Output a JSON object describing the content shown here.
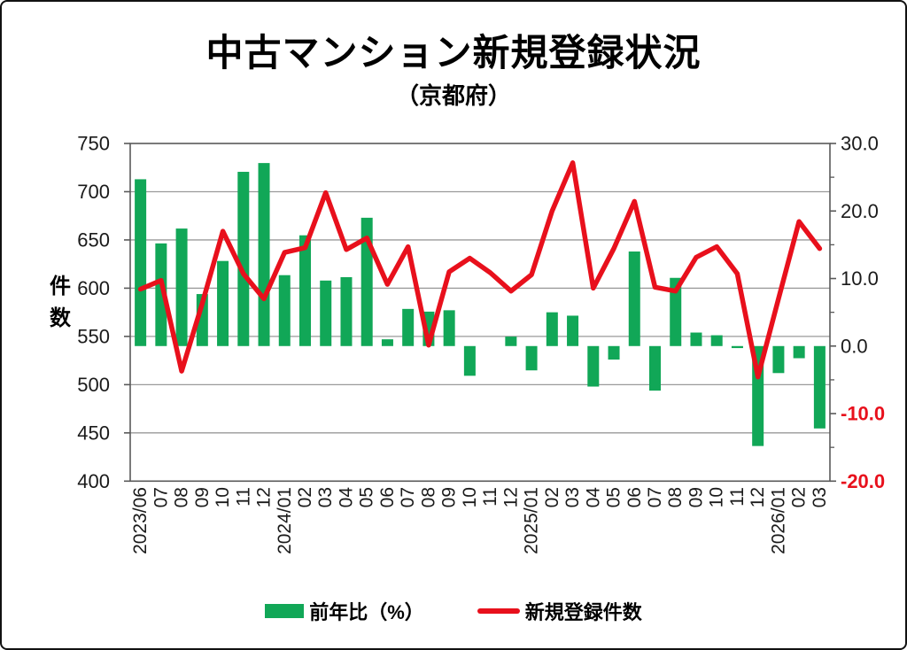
{
  "header": {
    "title": "中古マンション新規登録状況",
    "subtitle": "（京都府）"
  },
  "legend": {
    "bar_label": "前年比（%）",
    "line_label": "新規登録件数"
  },
  "chart_data": {
    "type": "bar",
    "subtype": "bar+line dual axis",
    "title": "中古マンション新規登録状況（京都府）",
    "categories": [
      "2023/06",
      "07",
      "08",
      "09",
      "10",
      "11",
      "12",
      "2024/01",
      "02",
      "03",
      "04",
      "05",
      "06",
      "07",
      "08",
      "09",
      "10",
      "11",
      "12",
      "2025/01",
      "02",
      "03",
      "04",
      "05",
      "06",
      "07",
      "08",
      "09",
      "10",
      "11",
      "12",
      "2026/01",
      "02",
      "03"
    ],
    "series": [
      {
        "name": "前年比（%）",
        "type": "bar",
        "axis": "right",
        "color": "#11A757",
        "values": [
          24.7,
          15.2,
          17.4,
          7.7,
          12.6,
          25.8,
          27.1,
          10.5,
          16.4,
          9.7,
          10.2,
          19.0,
          1.0,
          5.5,
          5.1,
          5.3,
          -4.4,
          0.0,
          1.4,
          -3.6,
          5.0,
          4.5,
          -6.0,
          -2.0,
          14.0,
          -6.6,
          10.1,
          2.0,
          1.6,
          -0.3,
          -14.8,
          -4.0,
          -1.8,
          -12.2
        ]
      },
      {
        "name": "新規登録件数",
        "type": "line",
        "axis": "left",
        "color": "#E8101C",
        "values": [
          599,
          608,
          514,
          584,
          659,
          615,
          589,
          637,
          642,
          699,
          640,
          652,
          604,
          643,
          541,
          617,
          631,
          616,
          597,
          614,
          680,
          730,
          600,
          641,
          690,
          601,
          597,
          632,
          643,
          615,
          508,
          589,
          669,
          641
        ]
      }
    ],
    "left_axis": {
      "label": "件\n数",
      "min": 400,
      "max": 750,
      "step": 50,
      "ticks": [
        "750",
        "700",
        "650",
        "600",
        "550",
        "500",
        "450",
        "400"
      ]
    },
    "right_axis": {
      "min": -20,
      "max": 30,
      "step": 10,
      "ticks": [
        "30.0",
        "20.0",
        "10.0",
        "0.0",
        "-10.0",
        "-20.0"
      ],
      "negative_color": "#E8101C"
    },
    "grid": true,
    "legend_position": "bottom",
    "text_color": "#1a1a1a",
    "grid_color": "#9a9a9a",
    "frame_color": "#595959"
  }
}
